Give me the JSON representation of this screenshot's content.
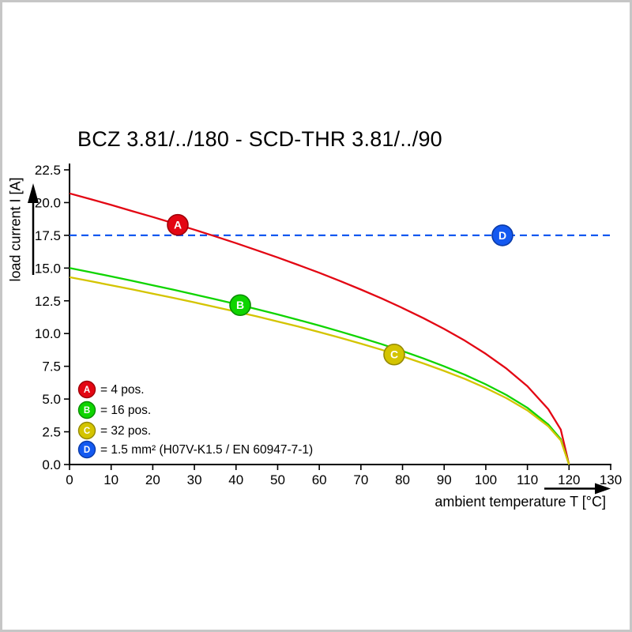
{
  "title": "BCZ 3.81/../180 - SCD-THR 3.81/../90",
  "chart_data": {
    "type": "line",
    "title": "BCZ 3.81/../180 - SCD-THR 3.81/../90",
    "xlabel": "ambient temperature T [°C]",
    "ylabel": "load current I [A]",
    "xlim": [
      0,
      130
    ],
    "ylim": [
      0,
      22.5
    ],
    "x_ticks": [
      0,
      10,
      20,
      30,
      40,
      50,
      60,
      70,
      80,
      90,
      100,
      110,
      120,
      130
    ],
    "y_ticks": [
      0,
      2.5,
      5,
      7.5,
      10,
      12.5,
      15,
      17.5,
      20,
      22.5
    ],
    "grid": false,
    "legend_position": "bottom-left-inside",
    "series": [
      {
        "id": "A",
        "name": "4 pos.",
        "color": "#e30613",
        "ring": "#9e0008",
        "style": "solid",
        "marker_at": [
          26,
          18.3
        ],
        "points": [
          [
            0,
            20.7
          ],
          [
            5,
            20.27
          ],
          [
            10,
            19.82
          ],
          [
            15,
            19.36
          ],
          [
            20,
            18.9
          ],
          [
            25,
            18.42
          ],
          [
            30,
            17.93
          ],
          [
            35,
            17.42
          ],
          [
            40,
            16.9
          ],
          [
            45,
            16.36
          ],
          [
            50,
            15.81
          ],
          [
            55,
            15.23
          ],
          [
            60,
            14.64
          ],
          [
            65,
            14.01
          ],
          [
            70,
            13.36
          ],
          [
            75,
            12.68
          ],
          [
            80,
            11.95
          ],
          [
            85,
            11.18
          ],
          [
            90,
            10.35
          ],
          [
            95,
            9.45
          ],
          [
            100,
            8.45
          ],
          [
            105,
            7.32
          ],
          [
            110,
            5.98
          ],
          [
            115,
            4.23
          ],
          [
            118,
            2.67
          ],
          [
            120,
            0
          ]
        ]
      },
      {
        "id": "B",
        "name": "16 pos.",
        "color": "#0fd400",
        "ring": "#0a8c00",
        "style": "solid",
        "marker_at": [
          41,
          12.17
        ],
        "points": [
          [
            0,
            15
          ],
          [
            5,
            14.69
          ],
          [
            10,
            14.36
          ],
          [
            15,
            14.03
          ],
          [
            20,
            13.69
          ],
          [
            25,
            13.35
          ],
          [
            30,
            12.99
          ],
          [
            35,
            12.62
          ],
          [
            40,
            12.25
          ],
          [
            45,
            11.86
          ],
          [
            50,
            11.46
          ],
          [
            55,
            11.04
          ],
          [
            60,
            10.61
          ],
          [
            65,
            10.15
          ],
          [
            70,
            9.68
          ],
          [
            75,
            9.19
          ],
          [
            80,
            8.66
          ],
          [
            85,
            8.1
          ],
          [
            90,
            7.5
          ],
          [
            95,
            6.85
          ],
          [
            100,
            6.12
          ],
          [
            105,
            5.3
          ],
          [
            110,
            4.33
          ],
          [
            115,
            3.06
          ],
          [
            118,
            1.94
          ],
          [
            120,
            0
          ]
        ]
      },
      {
        "id": "C",
        "name": "32 pos.",
        "color": "#d4c400",
        "ring": "#948900",
        "style": "solid",
        "marker_at": [
          78,
          8.4
        ],
        "points": [
          [
            0,
            14.3
          ],
          [
            5,
            14
          ],
          [
            10,
            13.69
          ],
          [
            15,
            13.38
          ],
          [
            20,
            13.05
          ],
          [
            25,
            12.72
          ],
          [
            30,
            12.38
          ],
          [
            35,
            12.03
          ],
          [
            40,
            11.67
          ],
          [
            45,
            11.31
          ],
          [
            50,
            10.92
          ],
          [
            55,
            10.53
          ],
          [
            60,
            10.11
          ],
          [
            65,
            9.68
          ],
          [
            70,
            9.23
          ],
          [
            75,
            8.76
          ],
          [
            80,
            8.26
          ],
          [
            85,
            7.72
          ],
          [
            90,
            7.15
          ],
          [
            95,
            6.53
          ],
          [
            100,
            5.84
          ],
          [
            105,
            5.06
          ],
          [
            110,
            4.13
          ],
          [
            115,
            2.92
          ],
          [
            118,
            1.85
          ],
          [
            120,
            0
          ]
        ]
      },
      {
        "id": "D",
        "name": "1.5 mm² (H07V-K1.5 / EN 60947-7-1)",
        "color": "#1459f0",
        "ring": "#0a3aa8",
        "style": "dashed",
        "dash": true,
        "marker_at": [
          104,
          17.5
        ],
        "points": [
          [
            0,
            17.5
          ],
          [
            130,
            17.5
          ]
        ]
      }
    ],
    "legend": [
      {
        "id": "A",
        "label": "= 4 pos."
      },
      {
        "id": "B",
        "label": "= 16 pos."
      },
      {
        "id": "C",
        "label": "= 32 pos."
      },
      {
        "id": "D",
        "label": "= 1.5 mm² (H07V-K1.5 / EN 60947-7-1)"
      }
    ]
  }
}
